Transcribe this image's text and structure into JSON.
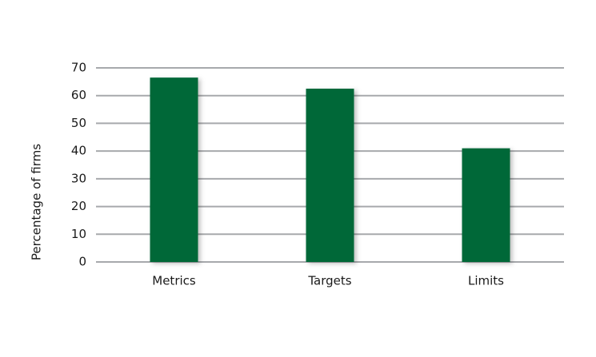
{
  "chart_data": {
    "type": "bar",
    "y_label": "Percentage of firms",
    "categories": [
      "Metrics",
      "Targets",
      "Limits"
    ],
    "values": [
      66.5,
      62.5,
      41
    ],
    "color": "#056839",
    "ylim": [
      0,
      70
    ],
    "yticks": [
      0,
      10,
      20,
      30,
      40,
      50,
      60,
      70
    ],
    "grid": true
  }
}
